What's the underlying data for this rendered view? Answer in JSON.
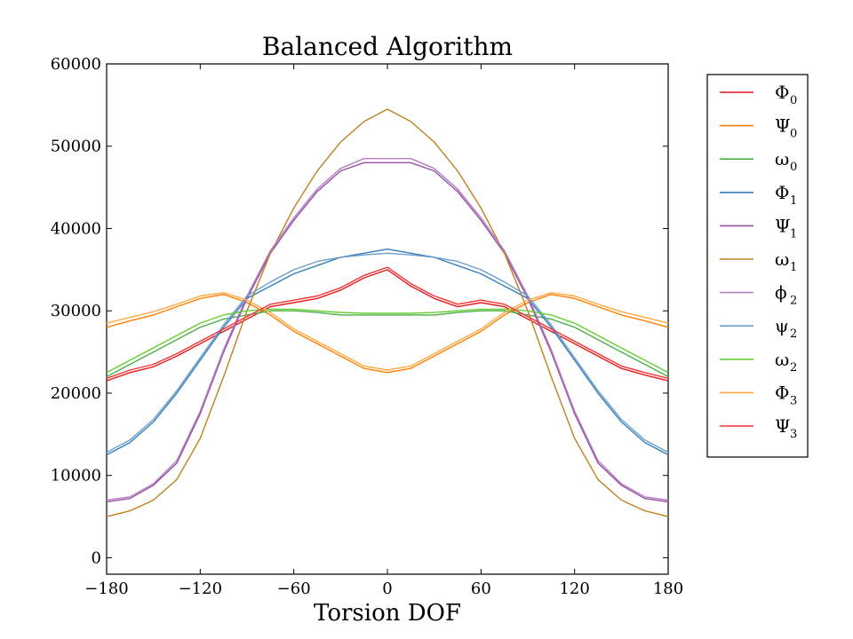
{
  "chart_data": {
    "type": "line",
    "title": "Balanced Algorithm",
    "xlabel": "Torsion DOF",
    "ylabel": "",
    "xlim": [
      -180,
      180
    ],
    "ylim": [
      -2000,
      60000
    ],
    "xticks": [
      -180,
      -120,
      -60,
      0,
      60,
      120,
      180
    ],
    "xtick_labels": [
      "−180",
      "−120",
      "−60",
      "0",
      "60",
      "120",
      "180"
    ],
    "yticks": [
      0,
      10000,
      20000,
      30000,
      40000,
      50000,
      60000
    ],
    "ytick_labels": [
      "0",
      "10000",
      "20000",
      "30000",
      "40000",
      "50000",
      "60000"
    ],
    "grid": false,
    "legend_position": "outside-right",
    "x": [
      -180,
      -165,
      -150,
      -135,
      -120,
      -105,
      -90,
      -75,
      -60,
      -45,
      -30,
      -15,
      0,
      15,
      30,
      45,
      60,
      75,
      90,
      105,
      120,
      135,
      150,
      165,
      180
    ],
    "series": [
      {
        "name": "Φ",
        "sub": "0",
        "color": "#e41a1c",
        "values": [
          21500,
          22500,
          23200,
          24500,
          26000,
          27500,
          29000,
          30500,
          31000,
          31500,
          32500,
          34000,
          35000,
          33000,
          31500,
          30500,
          31000,
          30500,
          29000,
          27500,
          26000,
          24500,
          23000,
          22200,
          21500
        ]
      },
      {
        "name": "Ψ",
        "sub": "0",
        "color": "#ff7f00",
        "values": [
          28000,
          28800,
          29500,
          30500,
          31500,
          32000,
          31000,
          29500,
          27500,
          26000,
          24500,
          23000,
          22500,
          23000,
          24500,
          26000,
          27500,
          29500,
          31000,
          32000,
          31500,
          30500,
          29500,
          28800,
          28000
        ]
      },
      {
        "name": "ω",
        "sub": "0",
        "color": "#4daf4a",
        "values": [
          22000,
          23500,
          25000,
          26500,
          28000,
          29000,
          29500,
          30000,
          30000,
          29800,
          29500,
          29500,
          29500,
          29500,
          29500,
          29800,
          30000,
          30000,
          29500,
          29000,
          28000,
          26500,
          25000,
          23500,
          22000
        ]
      },
      {
        "name": "Φ",
        "sub": "1",
        "color": "#377eb8",
        "values": [
          12500,
          14000,
          16500,
          20000,
          24000,
          28000,
          31500,
          33000,
          34500,
          35500,
          36500,
          37000,
          37500,
          37000,
          36500,
          35500,
          34500,
          33000,
          31500,
          28000,
          24000,
          20000,
          16500,
          14000,
          12500
        ]
      },
      {
        "name": "Ψ",
        "sub": "1",
        "color": "#984ea3",
        "values": [
          6800,
          7200,
          8800,
          11500,
          17500,
          25000,
          31500,
          37000,
          41000,
          44500,
          47000,
          48000,
          48000,
          48000,
          47000,
          44500,
          41000,
          37000,
          31500,
          25000,
          17500,
          11500,
          8800,
          7200,
          6800
        ]
      },
      {
        "name": "ω",
        "sub": "1",
        "color": "#c08020",
        "values": [
          5000,
          5700,
          7000,
          9500,
          14500,
          22000,
          30000,
          37000,
          42500,
          47000,
          50500,
          53000,
          54500,
          53000,
          50500,
          47000,
          42500,
          37000,
          30000,
          22000,
          14500,
          9500,
          7000,
          5700,
          5000
        ]
      },
      {
        "name": "ϕ",
        "sub": "2",
        "color": "#b080c0",
        "values": [
          7000,
          7400,
          9000,
          11800,
          17800,
          25300,
          31800,
          37300,
          41300,
          44800,
          47300,
          48500,
          48500,
          48500,
          47300,
          44800,
          41300,
          37300,
          31800,
          25300,
          17800,
          11800,
          9000,
          7400,
          7000
        ]
      },
      {
        "name": "ψ",
        "sub": "2",
        "color": "#6a9ecb",
        "values": [
          12800,
          14300,
          16800,
          20300,
          24300,
          28300,
          31800,
          33500,
          35000,
          36000,
          36500,
          36800,
          37000,
          36800,
          36500,
          36000,
          35000,
          33500,
          31800,
          28300,
          24300,
          20300,
          16800,
          14300,
          12800
        ]
      },
      {
        "name": "ω",
        "sub": "2",
        "color": "#66cc33",
        "values": [
          22500,
          24000,
          25500,
          27000,
          28500,
          29500,
          30000,
          30200,
          30200,
          30000,
          29800,
          29700,
          29700,
          29700,
          29800,
          30000,
          30200,
          30200,
          30000,
          29500,
          28500,
          27000,
          25500,
          24000,
          22500
        ]
      },
      {
        "name": "Φ",
        "sub": "3",
        "color": "#ffaa44",
        "values": [
          28500,
          29200,
          29900,
          30800,
          31800,
          32200,
          31300,
          29800,
          27800,
          26300,
          24800,
          23300,
          22800,
          23300,
          24800,
          26300,
          27800,
          29800,
          31300,
          32200,
          31800,
          30800,
          29900,
          29200,
          28500
        ]
      },
      {
        "name": "Ψ",
        "sub": "3",
        "color": "#ee3333",
        "values": [
          21800,
          22800,
          23500,
          24800,
          26300,
          27800,
          29300,
          30800,
          31300,
          31800,
          32800,
          34300,
          35300,
          33300,
          31800,
          30800,
          31300,
          30800,
          29300,
          27800,
          26300,
          24800,
          23300,
          22500,
          21800
        ]
      }
    ]
  }
}
